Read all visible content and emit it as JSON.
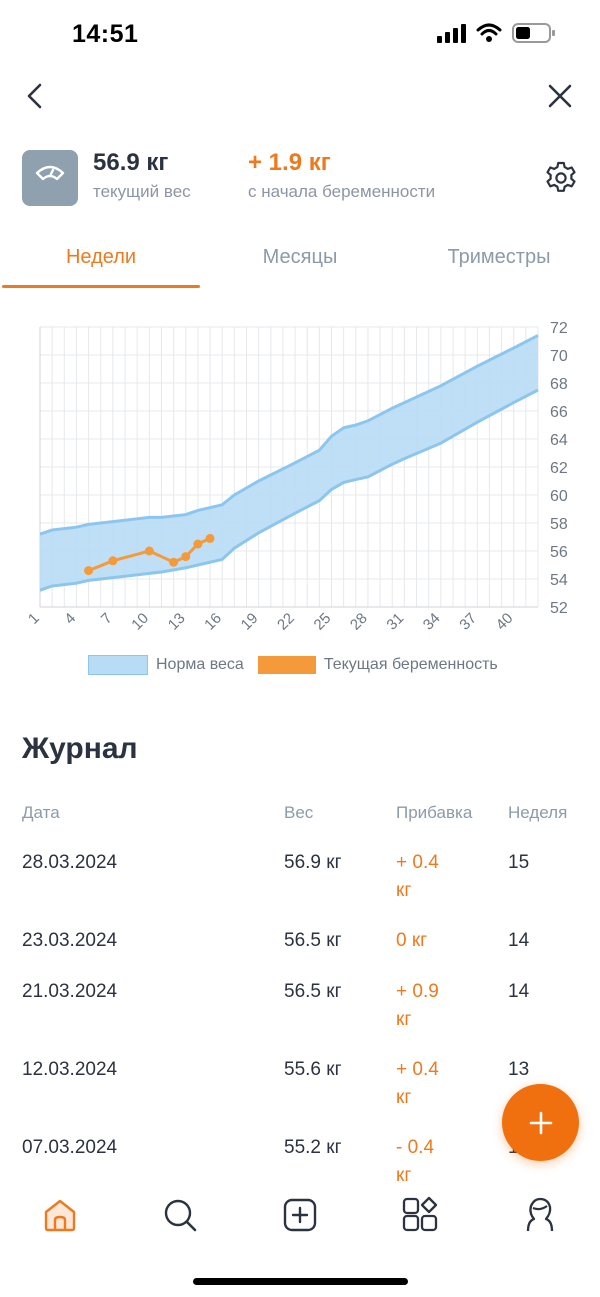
{
  "status_bar": {
    "time": "14:51"
  },
  "summary": {
    "current_weight": "56.9 кг",
    "current_weight_label": "текущий вес",
    "gain": "+ 1.9 кг",
    "gain_label": "с начала беременности"
  },
  "tabs": [
    {
      "label": "Недели",
      "active": true
    },
    {
      "label": "Месяцы",
      "active": false
    },
    {
      "label": "Триместры",
      "active": false
    }
  ],
  "colors": {
    "accent": "#ee7a1f",
    "norm_band": "#b8dcf5",
    "norm_band_border": "#8cc6ee",
    "series": "#f59a3b"
  },
  "chart_data": {
    "type": "area",
    "x_ticks": [
      "1",
      "4",
      "7",
      "10",
      "13",
      "16",
      "19",
      "22",
      "25",
      "28",
      "31",
      "34",
      "37",
      "40"
    ],
    "y_ticks": [
      "52",
      "54",
      "56",
      "58",
      "60",
      "62",
      "64",
      "66",
      "68",
      "70",
      "72"
    ],
    "xlim": [
      1,
      42
    ],
    "ylim": [
      52,
      72
    ],
    "y_axis_position": "right",
    "grid": true,
    "legend_placement": "bottom",
    "series": [
      {
        "name": "Норма веса",
        "kind": "band",
        "x": [
          1,
          2,
          4,
          5,
          7,
          8,
          10,
          11,
          13,
          14,
          16,
          17,
          19,
          22,
          24,
          25,
          26,
          27,
          28,
          30,
          31,
          34,
          37,
          40,
          42
        ],
        "upper": [
          57.2,
          57.5,
          57.7,
          57.9,
          58.1,
          58.2,
          58.4,
          58.4,
          58.6,
          58.9,
          59.3,
          60.0,
          61.0,
          62.3,
          63.2,
          64.2,
          64.8,
          65.0,
          65.3,
          66.2,
          66.6,
          67.8,
          69.2,
          70.5,
          71.4
        ],
        "lower": [
          53.2,
          53.5,
          53.7,
          53.9,
          54.1,
          54.2,
          54.4,
          54.5,
          54.8,
          55.0,
          55.4,
          56.2,
          57.3,
          58.7,
          59.6,
          60.4,
          60.9,
          61.1,
          61.3,
          62.2,
          62.6,
          63.7,
          65.2,
          66.6,
          67.5
        ]
      },
      {
        "name": "Текущая беременность",
        "kind": "line",
        "x": [
          5,
          7,
          10,
          12,
          13,
          14,
          15
        ],
        "values": [
          54.6,
          55.3,
          56.0,
          55.2,
          55.6,
          56.5,
          56.9
        ]
      }
    ]
  },
  "legend": {
    "norm": "Норма веса",
    "current": "Текущая беременность"
  },
  "journal": {
    "title": "Журнал",
    "columns": {
      "date": "Дата",
      "weight": "Вес",
      "gain": "Прибавка",
      "week": "Неделя"
    },
    "rows": [
      {
        "date": "28.03.2024",
        "weight": "56.9 кг",
        "gain_value": "+ 0.4",
        "gain_unit": "кг",
        "week": "15"
      },
      {
        "date": "23.03.2024",
        "weight": "56.5 кг",
        "gain_value": "0 кг",
        "gain_unit": "",
        "week": "14"
      },
      {
        "date": "21.03.2024",
        "weight": "56.5 кг",
        "gain_value": "+ 0.9",
        "gain_unit": "кг",
        "week": "14"
      },
      {
        "date": "12.03.2024",
        "weight": "55.6 кг",
        "gain_value": "+ 0.4",
        "gain_unit": "кг",
        "week": "13"
      },
      {
        "date": "07.03.2024",
        "weight": "55.2 кг",
        "gain_value": "- 0.4",
        "gain_unit": "кг",
        "week": "12"
      }
    ]
  },
  "fab": {
    "icon": "plus-icon"
  },
  "bottom_nav": [
    {
      "icon": "home-icon",
      "active": true
    },
    {
      "icon": "search-icon",
      "active": false
    },
    {
      "icon": "add-square-icon",
      "active": false
    },
    {
      "icon": "apps-icon",
      "active": false
    },
    {
      "icon": "profile-icon",
      "active": false
    }
  ]
}
